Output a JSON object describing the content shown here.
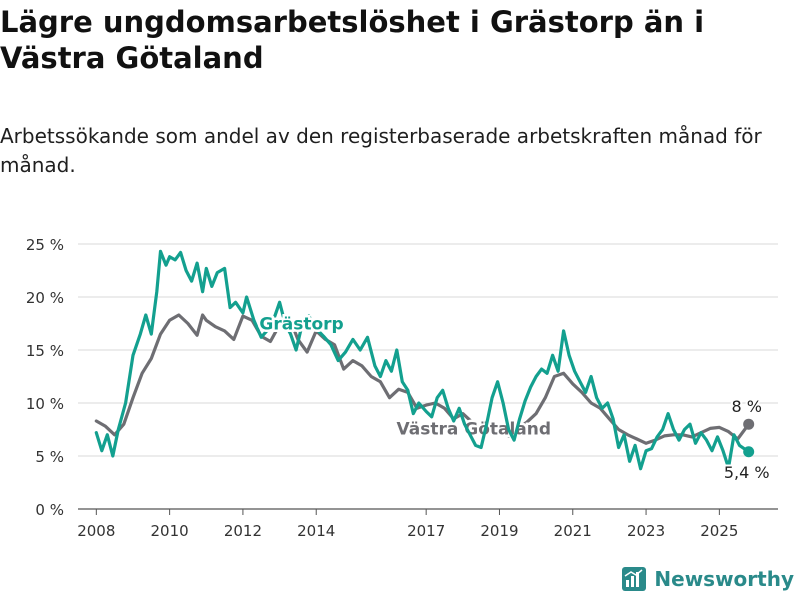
{
  "header": {
    "title": "Lägre ungdomsarbetslöshet i Grästorp än i Västra Götaland",
    "subtitle": "Arbetssökande som andel av den registerbaserade arbetskraften månad för månad."
  },
  "branding": {
    "name": "Newsworthy"
  },
  "chart_data": {
    "type": "line",
    "title": "Lägre ungdomsarbetslöshet i Grästorp än i Västra Götaland",
    "subtitle": "Arbetssökande som andel av den registerbaserade arbetskraften månad för månad.",
    "xlabel": "",
    "ylabel": "",
    "xlim": [
      2007.5,
      2026.6
    ],
    "ylim": [
      0,
      25
    ],
    "yticks": [
      0,
      5,
      10,
      15,
      20,
      25
    ],
    "ytick_labels": [
      "0 %",
      "5 %",
      "10 %",
      "15 %",
      "20 %",
      "25 %"
    ],
    "xticks": [
      2008,
      2010,
      2012,
      2014,
      2017,
      2019,
      2021,
      2023,
      2025
    ],
    "xtick_labels": [
      "2008",
      "2010",
      "2012",
      "2014",
      "2017",
      "2019",
      "2021",
      "2023",
      "2025"
    ],
    "grid": true,
    "series": [
      {
        "name": "Västra Götaland",
        "color": "#6e6e73",
        "label_year": 2018.3,
        "label_value": 7.6,
        "end_value_label": "8 %",
        "points": [
          [
            2008.0,
            8.3
          ],
          [
            2008.25,
            7.8
          ],
          [
            2008.5,
            7.0
          ],
          [
            2008.75,
            8.0
          ],
          [
            2009.0,
            10.5
          ],
          [
            2009.25,
            12.8
          ],
          [
            2009.5,
            14.2
          ],
          [
            2009.75,
            16.5
          ],
          [
            2010.0,
            17.8
          ],
          [
            2010.25,
            18.3
          ],
          [
            2010.5,
            17.5
          ],
          [
            2010.75,
            16.4
          ],
          [
            2010.9,
            18.3
          ],
          [
            2011.0,
            17.8
          ],
          [
            2011.25,
            17.2
          ],
          [
            2011.5,
            16.8
          ],
          [
            2011.75,
            16.0
          ],
          [
            2012.0,
            18.2
          ],
          [
            2012.25,
            17.8
          ],
          [
            2012.5,
            16.3
          ],
          [
            2012.75,
            15.8
          ],
          [
            2013.0,
            17.4
          ],
          [
            2013.25,
            18.2
          ],
          [
            2013.5,
            16.0
          ],
          [
            2013.75,
            14.8
          ],
          [
            2014.0,
            16.8
          ],
          [
            2014.25,
            16.0
          ],
          [
            2014.5,
            15.5
          ],
          [
            2014.75,
            13.2
          ],
          [
            2015.0,
            14.0
          ],
          [
            2015.25,
            13.5
          ],
          [
            2015.5,
            12.5
          ],
          [
            2015.75,
            12.0
          ],
          [
            2016.0,
            10.5
          ],
          [
            2016.25,
            11.3
          ],
          [
            2016.5,
            11.0
          ],
          [
            2016.75,
            9.5
          ],
          [
            2017.0,
            9.8
          ],
          [
            2017.25,
            10.0
          ],
          [
            2017.5,
            9.5
          ],
          [
            2017.75,
            8.5
          ],
          [
            2018.0,
            9.0
          ],
          [
            2018.25,
            8.2
          ],
          [
            2018.5,
            7.5
          ],
          [
            2018.75,
            8.0
          ],
          [
            2019.0,
            7.4
          ],
          [
            2019.25,
            6.9
          ],
          [
            2019.5,
            7.6
          ],
          [
            2019.75,
            8.2
          ],
          [
            2020.0,
            9.0
          ],
          [
            2020.25,
            10.5
          ],
          [
            2020.5,
            12.5
          ],
          [
            2020.75,
            12.8
          ],
          [
            2021.0,
            11.8
          ],
          [
            2021.25,
            11.0
          ],
          [
            2021.5,
            10.0
          ],
          [
            2021.75,
            9.5
          ],
          [
            2022.0,
            8.5
          ],
          [
            2022.25,
            7.5
          ],
          [
            2022.5,
            7.0
          ],
          [
            2022.75,
            6.6
          ],
          [
            2023.0,
            6.2
          ],
          [
            2023.25,
            6.5
          ],
          [
            2023.5,
            6.9
          ],
          [
            2023.75,
            7.0
          ],
          [
            2024.0,
            7.0
          ],
          [
            2024.25,
            6.8
          ],
          [
            2024.5,
            7.2
          ],
          [
            2024.75,
            7.6
          ],
          [
            2025.0,
            7.7
          ],
          [
            2025.25,
            7.3
          ],
          [
            2025.5,
            6.6
          ],
          [
            2025.8,
            8.0
          ]
        ]
      },
      {
        "name": "Grästorp",
        "color": "#13a08f",
        "label_year": 2013.6,
        "label_value": 17.5,
        "end_value_label": "5,4 %",
        "points": [
          [
            2008.0,
            7.2
          ],
          [
            2008.15,
            5.5
          ],
          [
            2008.3,
            7.0
          ],
          [
            2008.45,
            5.0
          ],
          [
            2008.6,
            7.5
          ],
          [
            2008.8,
            10.0
          ],
          [
            2009.0,
            14.5
          ],
          [
            2009.2,
            16.5
          ],
          [
            2009.35,
            18.3
          ],
          [
            2009.5,
            16.5
          ],
          [
            2009.65,
            20.5
          ],
          [
            2009.75,
            24.3
          ],
          [
            2009.9,
            23.0
          ],
          [
            2010.0,
            23.8
          ],
          [
            2010.15,
            23.5
          ],
          [
            2010.3,
            24.2
          ],
          [
            2010.45,
            22.5
          ],
          [
            2010.6,
            21.5
          ],
          [
            2010.75,
            23.2
          ],
          [
            2010.9,
            20.5
          ],
          [
            2011.0,
            22.7
          ],
          [
            2011.15,
            21.0
          ],
          [
            2011.3,
            22.3
          ],
          [
            2011.5,
            22.7
          ],
          [
            2011.65,
            19.0
          ],
          [
            2011.8,
            19.5
          ],
          [
            2012.0,
            18.5
          ],
          [
            2012.1,
            20.0
          ],
          [
            2012.3,
            17.8
          ],
          [
            2012.5,
            16.2
          ],
          [
            2012.7,
            17.0
          ],
          [
            2012.85,
            18.0
          ],
          [
            2013.0,
            19.5
          ],
          [
            2013.15,
            17.5
          ],
          [
            2013.3,
            16.5
          ],
          [
            2013.45,
            15.0
          ],
          [
            2013.6,
            17.2
          ],
          [
            2013.8,
            18.2
          ],
          [
            2014.0,
            17.0
          ],
          [
            2014.2,
            16.3
          ],
          [
            2014.4,
            15.5
          ],
          [
            2014.6,
            14.0
          ],
          [
            2014.8,
            14.8
          ],
          [
            2015.0,
            16.0
          ],
          [
            2015.2,
            15.0
          ],
          [
            2015.4,
            16.2
          ],
          [
            2015.6,
            13.5
          ],
          [
            2015.75,
            12.5
          ],
          [
            2015.9,
            14.0
          ],
          [
            2016.05,
            13.0
          ],
          [
            2016.2,
            15.0
          ],
          [
            2016.35,
            12.0
          ],
          [
            2016.5,
            11.2
          ],
          [
            2016.65,
            9.0
          ],
          [
            2016.8,
            10.0
          ],
          [
            2017.0,
            9.2
          ],
          [
            2017.15,
            8.7
          ],
          [
            2017.3,
            10.5
          ],
          [
            2017.45,
            11.2
          ],
          [
            2017.6,
            9.5
          ],
          [
            2017.75,
            8.3
          ],
          [
            2017.9,
            9.5
          ],
          [
            2018.05,
            8.0
          ],
          [
            2018.2,
            7.0
          ],
          [
            2018.35,
            6.0
          ],
          [
            2018.5,
            5.8
          ],
          [
            2018.65,
            8.0
          ],
          [
            2018.8,
            10.5
          ],
          [
            2018.95,
            12.0
          ],
          [
            2019.1,
            10.0
          ],
          [
            2019.25,
            7.5
          ],
          [
            2019.4,
            6.5
          ],
          [
            2019.55,
            8.5
          ],
          [
            2019.7,
            10.2
          ],
          [
            2019.85,
            11.5
          ],
          [
            2020.0,
            12.5
          ],
          [
            2020.15,
            13.2
          ],
          [
            2020.3,
            12.8
          ],
          [
            2020.45,
            14.5
          ],
          [
            2020.6,
            13.0
          ],
          [
            2020.75,
            16.8
          ],
          [
            2020.9,
            14.5
          ],
          [
            2021.05,
            13.0
          ],
          [
            2021.2,
            12.0
          ],
          [
            2021.35,
            11.0
          ],
          [
            2021.5,
            12.5
          ],
          [
            2021.65,
            10.5
          ],
          [
            2021.8,
            9.5
          ],
          [
            2021.95,
            10.0
          ],
          [
            2022.1,
            8.5
          ],
          [
            2022.25,
            5.8
          ],
          [
            2022.4,
            7.0
          ],
          [
            2022.55,
            4.5
          ],
          [
            2022.7,
            6.0
          ],
          [
            2022.85,
            3.8
          ],
          [
            2023.0,
            5.5
          ],
          [
            2023.15,
            5.7
          ],
          [
            2023.3,
            6.8
          ],
          [
            2023.45,
            7.5
          ],
          [
            2023.6,
            9.0
          ],
          [
            2023.75,
            7.5
          ],
          [
            2023.9,
            6.5
          ],
          [
            2024.05,
            7.5
          ],
          [
            2024.2,
            8.0
          ],
          [
            2024.35,
            6.2
          ],
          [
            2024.5,
            7.2
          ],
          [
            2024.65,
            6.5
          ],
          [
            2024.8,
            5.5
          ],
          [
            2024.95,
            6.8
          ],
          [
            2025.1,
            5.5
          ],
          [
            2025.25,
            3.9
          ],
          [
            2025.4,
            7.0
          ],
          [
            2025.55,
            6.0
          ],
          [
            2025.8,
            5.4
          ]
        ]
      }
    ]
  }
}
